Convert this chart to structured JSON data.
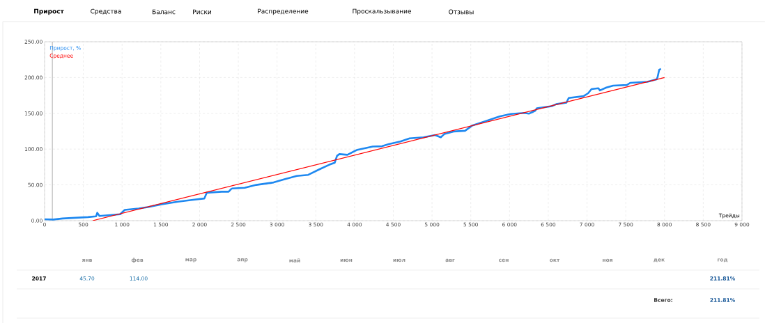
{
  "chart_data": {
    "type": "line",
    "xlabel": "Трейды",
    "legend": "top left",
    "grid": true,
    "marker": "none",
    "line_style": "solid",
    "xlim": [
      0,
      9000
    ],
    "ylim": [
      0,
      250
    ],
    "xticks": [
      0,
      500,
      {
        "value": 1000,
        "label": "1 000"
      },
      {
        "value": 1500,
        "label": "1 500"
      },
      {
        "value": 2000,
        "label": "2 000"
      },
      {
        "value": 2500,
        "label": "2 500"
      },
      {
        "value": 3000,
        "label": "3 000"
      },
      {
        "value": 3500,
        "label": "3 500"
      },
      {
        "value": 4000,
        "label": "4 000"
      },
      {
        "value": 4500,
        "label": "4 500"
      },
      {
        "value": 5000,
        "label": "5 000"
      },
      {
        "value": 5500,
        "label": "5 500"
      },
      {
        "value": 6000,
        "label": "6 000"
      },
      {
        "value": 6500,
        "label": "6 500"
      },
      {
        "value": 7000,
        "label": "7 000"
      },
      {
        "value": 7500,
        "label": "7 500"
      },
      {
        "value": 8000,
        "label": "8 000"
      },
      {
        "value": 8500,
        "label": "8 500"
      },
      {
        "value": 9000,
        "label": "9 000"
      }
    ],
    "yticks": [
      {
        "value": 0,
        "label": "0.00"
      },
      {
        "value": 50,
        "label": "50.00"
      },
      {
        "value": 100,
        "label": "100.00"
      },
      {
        "value": 150,
        "label": "150.00"
      },
      {
        "value": 200,
        "label": "200.00"
      },
      {
        "value": 250,
        "label": "250.00"
      }
    ],
    "ref_lines": [
      {
        "axis": "x",
        "value": 100,
        "color": "#999999"
      }
    ],
    "series": [
      {
        "name": "Прирост, %",
        "color": "#1e88f0",
        "x": [
          0,
          113,
          232,
          560,
          664,
          680,
          708,
          976,
          1020,
          1035,
          1214,
          1333,
          1512,
          1720,
          1899,
          2062,
          2092,
          2286,
          2375,
          2405,
          2420,
          2583,
          2732,
          2955,
          3104,
          3253,
          3402,
          3551,
          3670,
          3744,
          3774,
          3804,
          3908,
          4027,
          4235,
          4354,
          4443,
          4592,
          4711,
          4890,
          5039,
          5113,
          5158,
          5277,
          5426,
          5515,
          5693,
          5872,
          6015,
          6191,
          6250,
          6332,
          6353,
          6544,
          6603,
          6735,
          6764,
          6955,
          7014,
          7058,
          7147,
          7167,
          7250,
          7338,
          7514,
          7558,
          7779,
          7896,
          7911,
          7932,
          7955
        ],
        "values": [
          2,
          1.6,
          3,
          5,
          6,
          11,
          6.5,
          9,
          13.6,
          15,
          17,
          19,
          23,
          26.5,
          29,
          31,
          39,
          40.5,
          40.5,
          44,
          45,
          46,
          50,
          53.4,
          58,
          62.5,
          64,
          72,
          78,
          81,
          90.6,
          93,
          92,
          98.7,
          103.6,
          104,
          107,
          110.7,
          115,
          116.5,
          119.7,
          116.5,
          121,
          124.6,
          125.6,
          132.7,
          139,
          145.6,
          149,
          150.5,
          149.5,
          153.7,
          157,
          160,
          162.8,
          165,
          171.5,
          174,
          178,
          183.8,
          185,
          182,
          186,
          188.7,
          189.6,
          192.6,
          194,
          197.4,
          200.6,
          211,
          212
        ]
      },
      {
        "name": "Среднее",
        "color": "#ff0000",
        "x": [
          620,
          8000
        ],
        "values": [
          0,
          200
        ]
      }
    ],
    "annotations": [
      "Прирост",
      "Средства",
      "Баланс",
      "Риски",
      "Распределение",
      "Проскальзывание",
      "Отзывы",
      "янв",
      "фев",
      "мар",
      "апр",
      "май",
      "июн",
      "июл",
      "авг",
      "сен",
      "окт",
      "ноя",
      "дек",
      "год",
      "2017",
      "45.70",
      "114.00",
      "211.81%",
      "Всего:",
      "211.81%"
    ]
  }
}
